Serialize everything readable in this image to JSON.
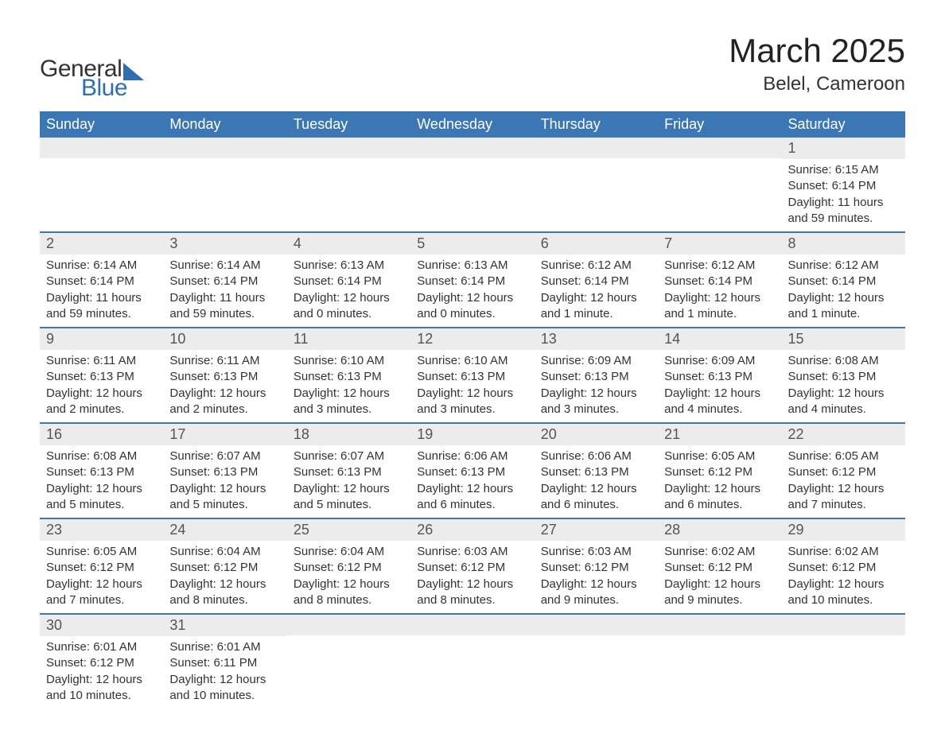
{
  "brand": {
    "text1": "General",
    "text2": "Blue",
    "accent_color": "#2f6eb0"
  },
  "title": "March 2025",
  "location": "Belel, Cameroon",
  "colors": {
    "header_bg": "#3a77b4",
    "header_fg": "#ffffff",
    "daynum_bg": "#ececec",
    "row_divider": "#3a77b4",
    "text": "#333333",
    "page_bg": "#ffffff"
  },
  "day_headers": [
    "Sunday",
    "Monday",
    "Tuesday",
    "Wednesday",
    "Thursday",
    "Friday",
    "Saturday"
  ],
  "weeks": [
    [
      {
        "n": "",
        "sr": "",
        "ss": "",
        "dl": ""
      },
      {
        "n": "",
        "sr": "",
        "ss": "",
        "dl": ""
      },
      {
        "n": "",
        "sr": "",
        "ss": "",
        "dl": ""
      },
      {
        "n": "",
        "sr": "",
        "ss": "",
        "dl": ""
      },
      {
        "n": "",
        "sr": "",
        "ss": "",
        "dl": ""
      },
      {
        "n": "",
        "sr": "",
        "ss": "",
        "dl": ""
      },
      {
        "n": "1",
        "sr": "Sunrise: 6:15 AM",
        "ss": "Sunset: 6:14 PM",
        "dl": "Daylight: 11 hours and 59 minutes."
      }
    ],
    [
      {
        "n": "2",
        "sr": "Sunrise: 6:14 AM",
        "ss": "Sunset: 6:14 PM",
        "dl": "Daylight: 11 hours and 59 minutes."
      },
      {
        "n": "3",
        "sr": "Sunrise: 6:14 AM",
        "ss": "Sunset: 6:14 PM",
        "dl": "Daylight: 11 hours and 59 minutes."
      },
      {
        "n": "4",
        "sr": "Sunrise: 6:13 AM",
        "ss": "Sunset: 6:14 PM",
        "dl": "Daylight: 12 hours and 0 minutes."
      },
      {
        "n": "5",
        "sr": "Sunrise: 6:13 AM",
        "ss": "Sunset: 6:14 PM",
        "dl": "Daylight: 12 hours and 0 minutes."
      },
      {
        "n": "6",
        "sr": "Sunrise: 6:12 AM",
        "ss": "Sunset: 6:14 PM",
        "dl": "Daylight: 12 hours and 1 minute."
      },
      {
        "n": "7",
        "sr": "Sunrise: 6:12 AM",
        "ss": "Sunset: 6:14 PM",
        "dl": "Daylight: 12 hours and 1 minute."
      },
      {
        "n": "8",
        "sr": "Sunrise: 6:12 AM",
        "ss": "Sunset: 6:14 PM",
        "dl": "Daylight: 12 hours and 1 minute."
      }
    ],
    [
      {
        "n": "9",
        "sr": "Sunrise: 6:11 AM",
        "ss": "Sunset: 6:13 PM",
        "dl": "Daylight: 12 hours and 2 minutes."
      },
      {
        "n": "10",
        "sr": "Sunrise: 6:11 AM",
        "ss": "Sunset: 6:13 PM",
        "dl": "Daylight: 12 hours and 2 minutes."
      },
      {
        "n": "11",
        "sr": "Sunrise: 6:10 AM",
        "ss": "Sunset: 6:13 PM",
        "dl": "Daylight: 12 hours and 3 minutes."
      },
      {
        "n": "12",
        "sr": "Sunrise: 6:10 AM",
        "ss": "Sunset: 6:13 PM",
        "dl": "Daylight: 12 hours and 3 minutes."
      },
      {
        "n": "13",
        "sr": "Sunrise: 6:09 AM",
        "ss": "Sunset: 6:13 PM",
        "dl": "Daylight: 12 hours and 3 minutes."
      },
      {
        "n": "14",
        "sr": "Sunrise: 6:09 AM",
        "ss": "Sunset: 6:13 PM",
        "dl": "Daylight: 12 hours and 4 minutes."
      },
      {
        "n": "15",
        "sr": "Sunrise: 6:08 AM",
        "ss": "Sunset: 6:13 PM",
        "dl": "Daylight: 12 hours and 4 minutes."
      }
    ],
    [
      {
        "n": "16",
        "sr": "Sunrise: 6:08 AM",
        "ss": "Sunset: 6:13 PM",
        "dl": "Daylight: 12 hours and 5 minutes."
      },
      {
        "n": "17",
        "sr": "Sunrise: 6:07 AM",
        "ss": "Sunset: 6:13 PM",
        "dl": "Daylight: 12 hours and 5 minutes."
      },
      {
        "n": "18",
        "sr": "Sunrise: 6:07 AM",
        "ss": "Sunset: 6:13 PM",
        "dl": "Daylight: 12 hours and 5 minutes."
      },
      {
        "n": "19",
        "sr": "Sunrise: 6:06 AM",
        "ss": "Sunset: 6:13 PM",
        "dl": "Daylight: 12 hours and 6 minutes."
      },
      {
        "n": "20",
        "sr": "Sunrise: 6:06 AM",
        "ss": "Sunset: 6:13 PM",
        "dl": "Daylight: 12 hours and 6 minutes."
      },
      {
        "n": "21",
        "sr": "Sunrise: 6:05 AM",
        "ss": "Sunset: 6:12 PM",
        "dl": "Daylight: 12 hours and 6 minutes."
      },
      {
        "n": "22",
        "sr": "Sunrise: 6:05 AM",
        "ss": "Sunset: 6:12 PM",
        "dl": "Daylight: 12 hours and 7 minutes."
      }
    ],
    [
      {
        "n": "23",
        "sr": "Sunrise: 6:05 AM",
        "ss": "Sunset: 6:12 PM",
        "dl": "Daylight: 12 hours and 7 minutes."
      },
      {
        "n": "24",
        "sr": "Sunrise: 6:04 AM",
        "ss": "Sunset: 6:12 PM",
        "dl": "Daylight: 12 hours and 8 minutes."
      },
      {
        "n": "25",
        "sr": "Sunrise: 6:04 AM",
        "ss": "Sunset: 6:12 PM",
        "dl": "Daylight: 12 hours and 8 minutes."
      },
      {
        "n": "26",
        "sr": "Sunrise: 6:03 AM",
        "ss": "Sunset: 6:12 PM",
        "dl": "Daylight: 12 hours and 8 minutes."
      },
      {
        "n": "27",
        "sr": "Sunrise: 6:03 AM",
        "ss": "Sunset: 6:12 PM",
        "dl": "Daylight: 12 hours and 9 minutes."
      },
      {
        "n": "28",
        "sr": "Sunrise: 6:02 AM",
        "ss": "Sunset: 6:12 PM",
        "dl": "Daylight: 12 hours and 9 minutes."
      },
      {
        "n": "29",
        "sr": "Sunrise: 6:02 AM",
        "ss": "Sunset: 6:12 PM",
        "dl": "Daylight: 12 hours and 10 minutes."
      }
    ],
    [
      {
        "n": "30",
        "sr": "Sunrise: 6:01 AM",
        "ss": "Sunset: 6:12 PM",
        "dl": "Daylight: 12 hours and 10 minutes."
      },
      {
        "n": "31",
        "sr": "Sunrise: 6:01 AM",
        "ss": "Sunset: 6:11 PM",
        "dl": "Daylight: 12 hours and 10 minutes."
      },
      {
        "n": "",
        "sr": "",
        "ss": "",
        "dl": ""
      },
      {
        "n": "",
        "sr": "",
        "ss": "",
        "dl": ""
      },
      {
        "n": "",
        "sr": "",
        "ss": "",
        "dl": ""
      },
      {
        "n": "",
        "sr": "",
        "ss": "",
        "dl": ""
      },
      {
        "n": "",
        "sr": "",
        "ss": "",
        "dl": ""
      }
    ]
  ]
}
